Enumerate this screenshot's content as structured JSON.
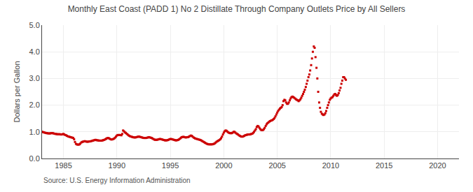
{
  "chart_data": {
    "type": "scatter",
    "title": "Monthly East Coast (PADD 1) No 2 Distillate Through Company Outlets Price by All Sellers",
    "ylabel": "Dollars per Gallon",
    "annotations": [
      "Source: U.S. Energy Information Administration"
    ],
    "color": "#cc0000",
    "marker": "square",
    "grid": true,
    "xlim": [
      1983,
      2022
    ],
    "ylim": [
      0.0,
      5.0
    ],
    "xticks": [
      1985,
      1990,
      1995,
      2000,
      2005,
      2010,
      2015,
      2020
    ],
    "yticks": [
      {
        "value": 0.0,
        "label": "0.0"
      },
      {
        "value": 1.0,
        "label": "1.0"
      },
      {
        "value": 2.0,
        "label": "2.0"
      },
      {
        "value": 3.0,
        "label": "3.0"
      },
      {
        "value": 4.0,
        "label": "4.0"
      },
      {
        "value": 5.0,
        "label": "5.0"
      }
    ],
    "x": [
      1983.0,
      1983.08,
      1983.17,
      1983.25,
      1983.33,
      1983.42,
      1983.5,
      1983.58,
      1983.67,
      1983.75,
      1983.83,
      1983.92,
      1984.0,
      1984.08,
      1984.17,
      1984.25,
      1984.33,
      1984.42,
      1984.5,
      1984.58,
      1984.67,
      1984.75,
      1984.83,
      1984.92,
      1985.0,
      1985.08,
      1985.17,
      1985.25,
      1985.33,
      1985.42,
      1985.5,
      1985.58,
      1985.67,
      1985.75,
      1985.83,
      1985.92,
      1986.0,
      1986.08,
      1986.17,
      1986.25,
      1986.33,
      1986.42,
      1986.5,
      1986.58,
      1986.67,
      1986.75,
      1986.83,
      1986.92,
      1987.0,
      1987.08,
      1987.17,
      1987.25,
      1987.33,
      1987.42,
      1987.5,
      1987.58,
      1987.67,
      1987.75,
      1987.83,
      1987.92,
      1988.0,
      1988.08,
      1988.17,
      1988.25,
      1988.33,
      1988.42,
      1988.5,
      1988.58,
      1988.67,
      1988.75,
      1988.83,
      1988.92,
      1989.0,
      1989.08,
      1989.17,
      1989.25,
      1989.33,
      1989.42,
      1989.5,
      1989.58,
      1989.67,
      1989.75,
      1989.83,
      1989.92,
      1990.0,
      1990.08,
      1990.17,
      1990.25,
      1990.33,
      1990.42,
      1990.5,
      1990.58,
      1990.67,
      1990.75,
      1990.83,
      1990.92,
      1991.0,
      1991.08,
      1991.17,
      1991.25,
      1991.33,
      1991.42,
      1991.5,
      1991.58,
      1991.67,
      1991.75,
      1991.83,
      1991.92,
      1992.0,
      1992.08,
      1992.17,
      1992.25,
      1992.33,
      1992.42,
      1992.5,
      1992.58,
      1992.67,
      1992.75,
      1992.83,
      1992.92,
      1993.0,
      1993.08,
      1993.17,
      1993.25,
      1993.33,
      1993.42,
      1993.5,
      1993.58,
      1993.67,
      1993.75,
      1993.83,
      1993.92,
      1994.0,
      1994.08,
      1994.17,
      1994.25,
      1994.33,
      1994.42,
      1994.5,
      1994.58,
      1994.67,
      1994.75,
      1994.83,
      1994.92,
      1995.0,
      1995.08,
      1995.17,
      1995.25,
      1995.33,
      1995.42,
      1995.5,
      1995.58,
      1995.67,
      1995.75,
      1995.83,
      1995.92,
      1996.0,
      1996.08,
      1996.17,
      1996.25,
      1996.33,
      1996.42,
      1996.5,
      1996.58,
      1996.67,
      1996.75,
      1996.83,
      1996.92,
      1997.0,
      1997.08,
      1997.17,
      1997.25,
      1997.33,
      1997.42,
      1997.5,
      1997.58,
      1997.67,
      1997.75,
      1997.83,
      1997.92,
      1998.0,
      1998.08,
      1998.17,
      1998.25,
      1998.33,
      1998.42,
      1998.5,
      1998.58,
      1998.67,
      1998.75,
      1998.83,
      1998.92,
      1999.0,
      1999.08,
      1999.17,
      1999.25,
      1999.33,
      1999.42,
      1999.5,
      1999.58,
      1999.67,
      1999.75,
      1999.83,
      1999.92,
      2000.0,
      2000.08,
      2000.17,
      2000.25,
      2000.33,
      2000.42,
      2000.5,
      2000.58,
      2000.67,
      2000.75,
      2000.83,
      2000.92,
      2001.0,
      2001.08,
      2001.17,
      2001.25,
      2001.33,
      2001.42,
      2001.5,
      2001.58,
      2001.67,
      2001.75,
      2001.83,
      2001.92,
      2002.0,
      2002.08,
      2002.17,
      2002.25,
      2002.33,
      2002.42,
      2002.5,
      2002.58,
      2002.67,
      2002.75,
      2002.83,
      2002.92,
      2003.0,
      2003.08,
      2003.17,
      2003.25,
      2003.33,
      2003.42,
      2003.5,
      2003.58,
      2003.67,
      2003.75,
      2003.83,
      2003.92,
      2004.0,
      2004.08,
      2004.17,
      2004.25,
      2004.33,
      2004.42,
      2004.5,
      2004.58,
      2004.67,
      2004.75,
      2004.83,
      2004.92,
      2005.0,
      2005.08,
      2005.17,
      2005.25,
      2005.33,
      2005.42,
      2005.5,
      2005.58,
      2005.67,
      2005.75,
      2005.83,
      2005.92,
      2006.0,
      2006.08,
      2006.17,
      2006.25,
      2006.33,
      2006.42,
      2006.5,
      2006.58,
      2006.67,
      2006.75,
      2006.83,
      2006.92,
      2007.0,
      2007.08,
      2007.17,
      2007.25,
      2007.33,
      2007.42,
      2007.5,
      2007.58,
      2007.67,
      2007.75,
      2007.83,
      2007.92,
      2008.0,
      2008.08,
      2008.17,
      2008.25,
      2008.33,
      2008.42,
      2008.5,
      2008.58,
      2008.67,
      2008.75,
      2008.83,
      2008.92,
      2009.0,
      2009.08,
      2009.17,
      2009.25,
      2009.33,
      2009.42,
      2009.5,
      2009.58,
      2009.67,
      2009.75,
      2009.83,
      2009.92,
      2010.0,
      2010.08,
      2010.17,
      2010.25,
      2010.33,
      2010.42,
      2010.5,
      2010.58,
      2010.67,
      2010.75,
      2010.83,
      2010.92,
      2011.0,
      2011.08,
      2011.17,
      2011.25,
      2011.33,
      2011.42
    ],
    "values": [
      1.0,
      0.99,
      0.98,
      0.97,
      0.96,
      0.95,
      0.95,
      0.94,
      0.94,
      0.94,
      0.95,
      0.95,
      0.95,
      0.94,
      0.93,
      0.92,
      0.92,
      0.91,
      0.91,
      0.91,
      0.91,
      0.9,
      0.9,
      0.91,
      0.92,
      0.9,
      0.88,
      0.87,
      0.85,
      0.83,
      0.82,
      0.81,
      0.8,
      0.79,
      0.78,
      0.77,
      0.72,
      0.62,
      0.55,
      0.53,
      0.52,
      0.52,
      0.53,
      0.56,
      0.6,
      0.62,
      0.63,
      0.64,
      0.65,
      0.64,
      0.63,
      0.63,
      0.63,
      0.64,
      0.64,
      0.65,
      0.66,
      0.67,
      0.68,
      0.69,
      0.7,
      0.69,
      0.68,
      0.68,
      0.67,
      0.67,
      0.67,
      0.67,
      0.68,
      0.69,
      0.7,
      0.72,
      0.74,
      0.76,
      0.77,
      0.76,
      0.74,
      0.72,
      0.71,
      0.72,
      0.73,
      0.75,
      0.78,
      0.82,
      0.86,
      0.88,
      0.88,
      0.88,
      0.88,
      0.87,
      0.92,
      1.05,
      1.02,
      0.98,
      0.96,
      0.93,
      0.9,
      0.87,
      0.85,
      0.83,
      0.82,
      0.81,
      0.8,
      0.79,
      0.79,
      0.79,
      0.8,
      0.81,
      0.82,
      0.82,
      0.81,
      0.8,
      0.79,
      0.78,
      0.77,
      0.77,
      0.77,
      0.77,
      0.78,
      0.79,
      0.8,
      0.79,
      0.78,
      0.77,
      0.75,
      0.73,
      0.71,
      0.7,
      0.7,
      0.7,
      0.71,
      0.72,
      0.73,
      0.73,
      0.72,
      0.71,
      0.7,
      0.69,
      0.68,
      0.68,
      0.68,
      0.69,
      0.7,
      0.72,
      0.73,
      0.73,
      0.72,
      0.71,
      0.7,
      0.69,
      0.68,
      0.68,
      0.69,
      0.7,
      0.72,
      0.75,
      0.78,
      0.8,
      0.81,
      0.81,
      0.8,
      0.79,
      0.79,
      0.8,
      0.8,
      0.82,
      0.84,
      0.86,
      0.85,
      0.82,
      0.79,
      0.77,
      0.75,
      0.74,
      0.73,
      0.72,
      0.71,
      0.7,
      0.69,
      0.67,
      0.65,
      0.63,
      0.61,
      0.59,
      0.57,
      0.55,
      0.54,
      0.53,
      0.53,
      0.53,
      0.53,
      0.53,
      0.54,
      0.55,
      0.57,
      0.6,
      0.63,
      0.65,
      0.67,
      0.69,
      0.72,
      0.76,
      0.82,
      0.9,
      0.97,
      1.02,
      1.05,
      1.04,
      1.01,
      0.98,
      0.96,
      0.95,
      0.95,
      0.95,
      0.97,
      1.0,
      1.0,
      0.97,
      0.94,
      0.92,
      0.9,
      0.87,
      0.85,
      0.83,
      0.82,
      0.82,
      0.83,
      0.85,
      0.87,
      0.88,
      0.89,
      0.9,
      0.9,
      0.9,
      0.91,
      0.92,
      0.93,
      0.96,
      1.0,
      1.05,
      1.1,
      1.18,
      1.22,
      1.2,
      1.15,
      1.1,
      1.07,
      1.06,
      1.07,
      1.1,
      1.15,
      1.22,
      1.28,
      1.32,
      1.35,
      1.38,
      1.4,
      1.42,
      1.43,
      1.45,
      1.48,
      1.52,
      1.58,
      1.65,
      1.72,
      1.78,
      1.83,
      1.87,
      1.9,
      1.93,
      2.0,
      2.15,
      2.2,
      2.18,
      2.1,
      2.05,
      2.05,
      2.1,
      2.18,
      2.25,
      2.3,
      2.32,
      2.3,
      2.28,
      2.25,
      2.22,
      2.2,
      2.18,
      2.15,
      2.18,
      2.22,
      2.28,
      2.35,
      2.42,
      2.5,
      2.58,
      2.68,
      2.8,
      2.92,
      3.05,
      3.15,
      3.3,
      3.5,
      3.75,
      4.0,
      4.2,
      4.15,
      3.8,
      3.4,
      3.0,
      2.5,
      2.1,
      1.9,
      1.75,
      1.68,
      1.65,
      1.63,
      1.65,
      1.7,
      1.78,
      1.9,
      2.0,
      2.1,
      2.2,
      2.25,
      2.28,
      2.3,
      2.35,
      2.4,
      2.42,
      2.38,
      2.35,
      2.38,
      2.45,
      2.55,
      2.65,
      2.8,
      2.92,
      3.05,
      3.05,
      3.0,
      2.95
    ]
  }
}
